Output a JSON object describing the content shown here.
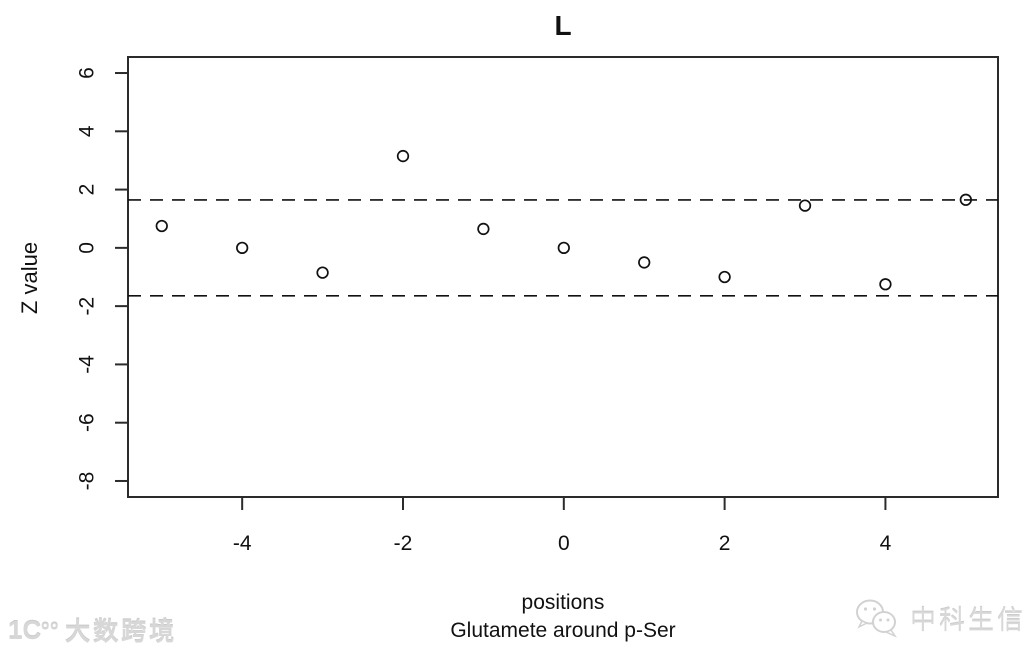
{
  "chart_data": {
    "type": "scatter",
    "title": "L",
    "ylabel": "Z value",
    "xlabel_lines": [
      "positions",
      "Glutamete around p-Ser"
    ],
    "x": [
      -5,
      -4,
      -3,
      -2,
      -1,
      0,
      1,
      2,
      3,
      4,
      5
    ],
    "y": [
      0.75,
      0.0,
      -0.85,
      3.15,
      0.65,
      0.0,
      -0.5,
      -1.0,
      1.45,
      -1.25,
      1.65
    ],
    "x_ticks": [
      -4,
      -2,
      0,
      2,
      4
    ],
    "y_ticks": [
      6,
      4,
      2,
      0,
      -2,
      -4,
      -6,
      -8
    ],
    "xlim": [
      -5.42,
      5.4
    ],
    "ylim": [
      -8.55,
      6.55
    ],
    "hlines": [
      1.645,
      -1.645
    ],
    "hline_style": "dashed",
    "point_style": "open-circle",
    "grid": false,
    "legend": "none",
    "colors": {
      "axis": "#2b2b2b",
      "points": "#111111",
      "threshold_lines": "#111111",
      "text": "#111111",
      "background": "#ffffff"
    }
  },
  "watermarks": {
    "bottom_left": {
      "logo": "1C",
      "logo_sup": "oo",
      "text": "大数跨境"
    },
    "bottom_right": {
      "icon": "wechat-icon",
      "text": "中科生信"
    }
  }
}
